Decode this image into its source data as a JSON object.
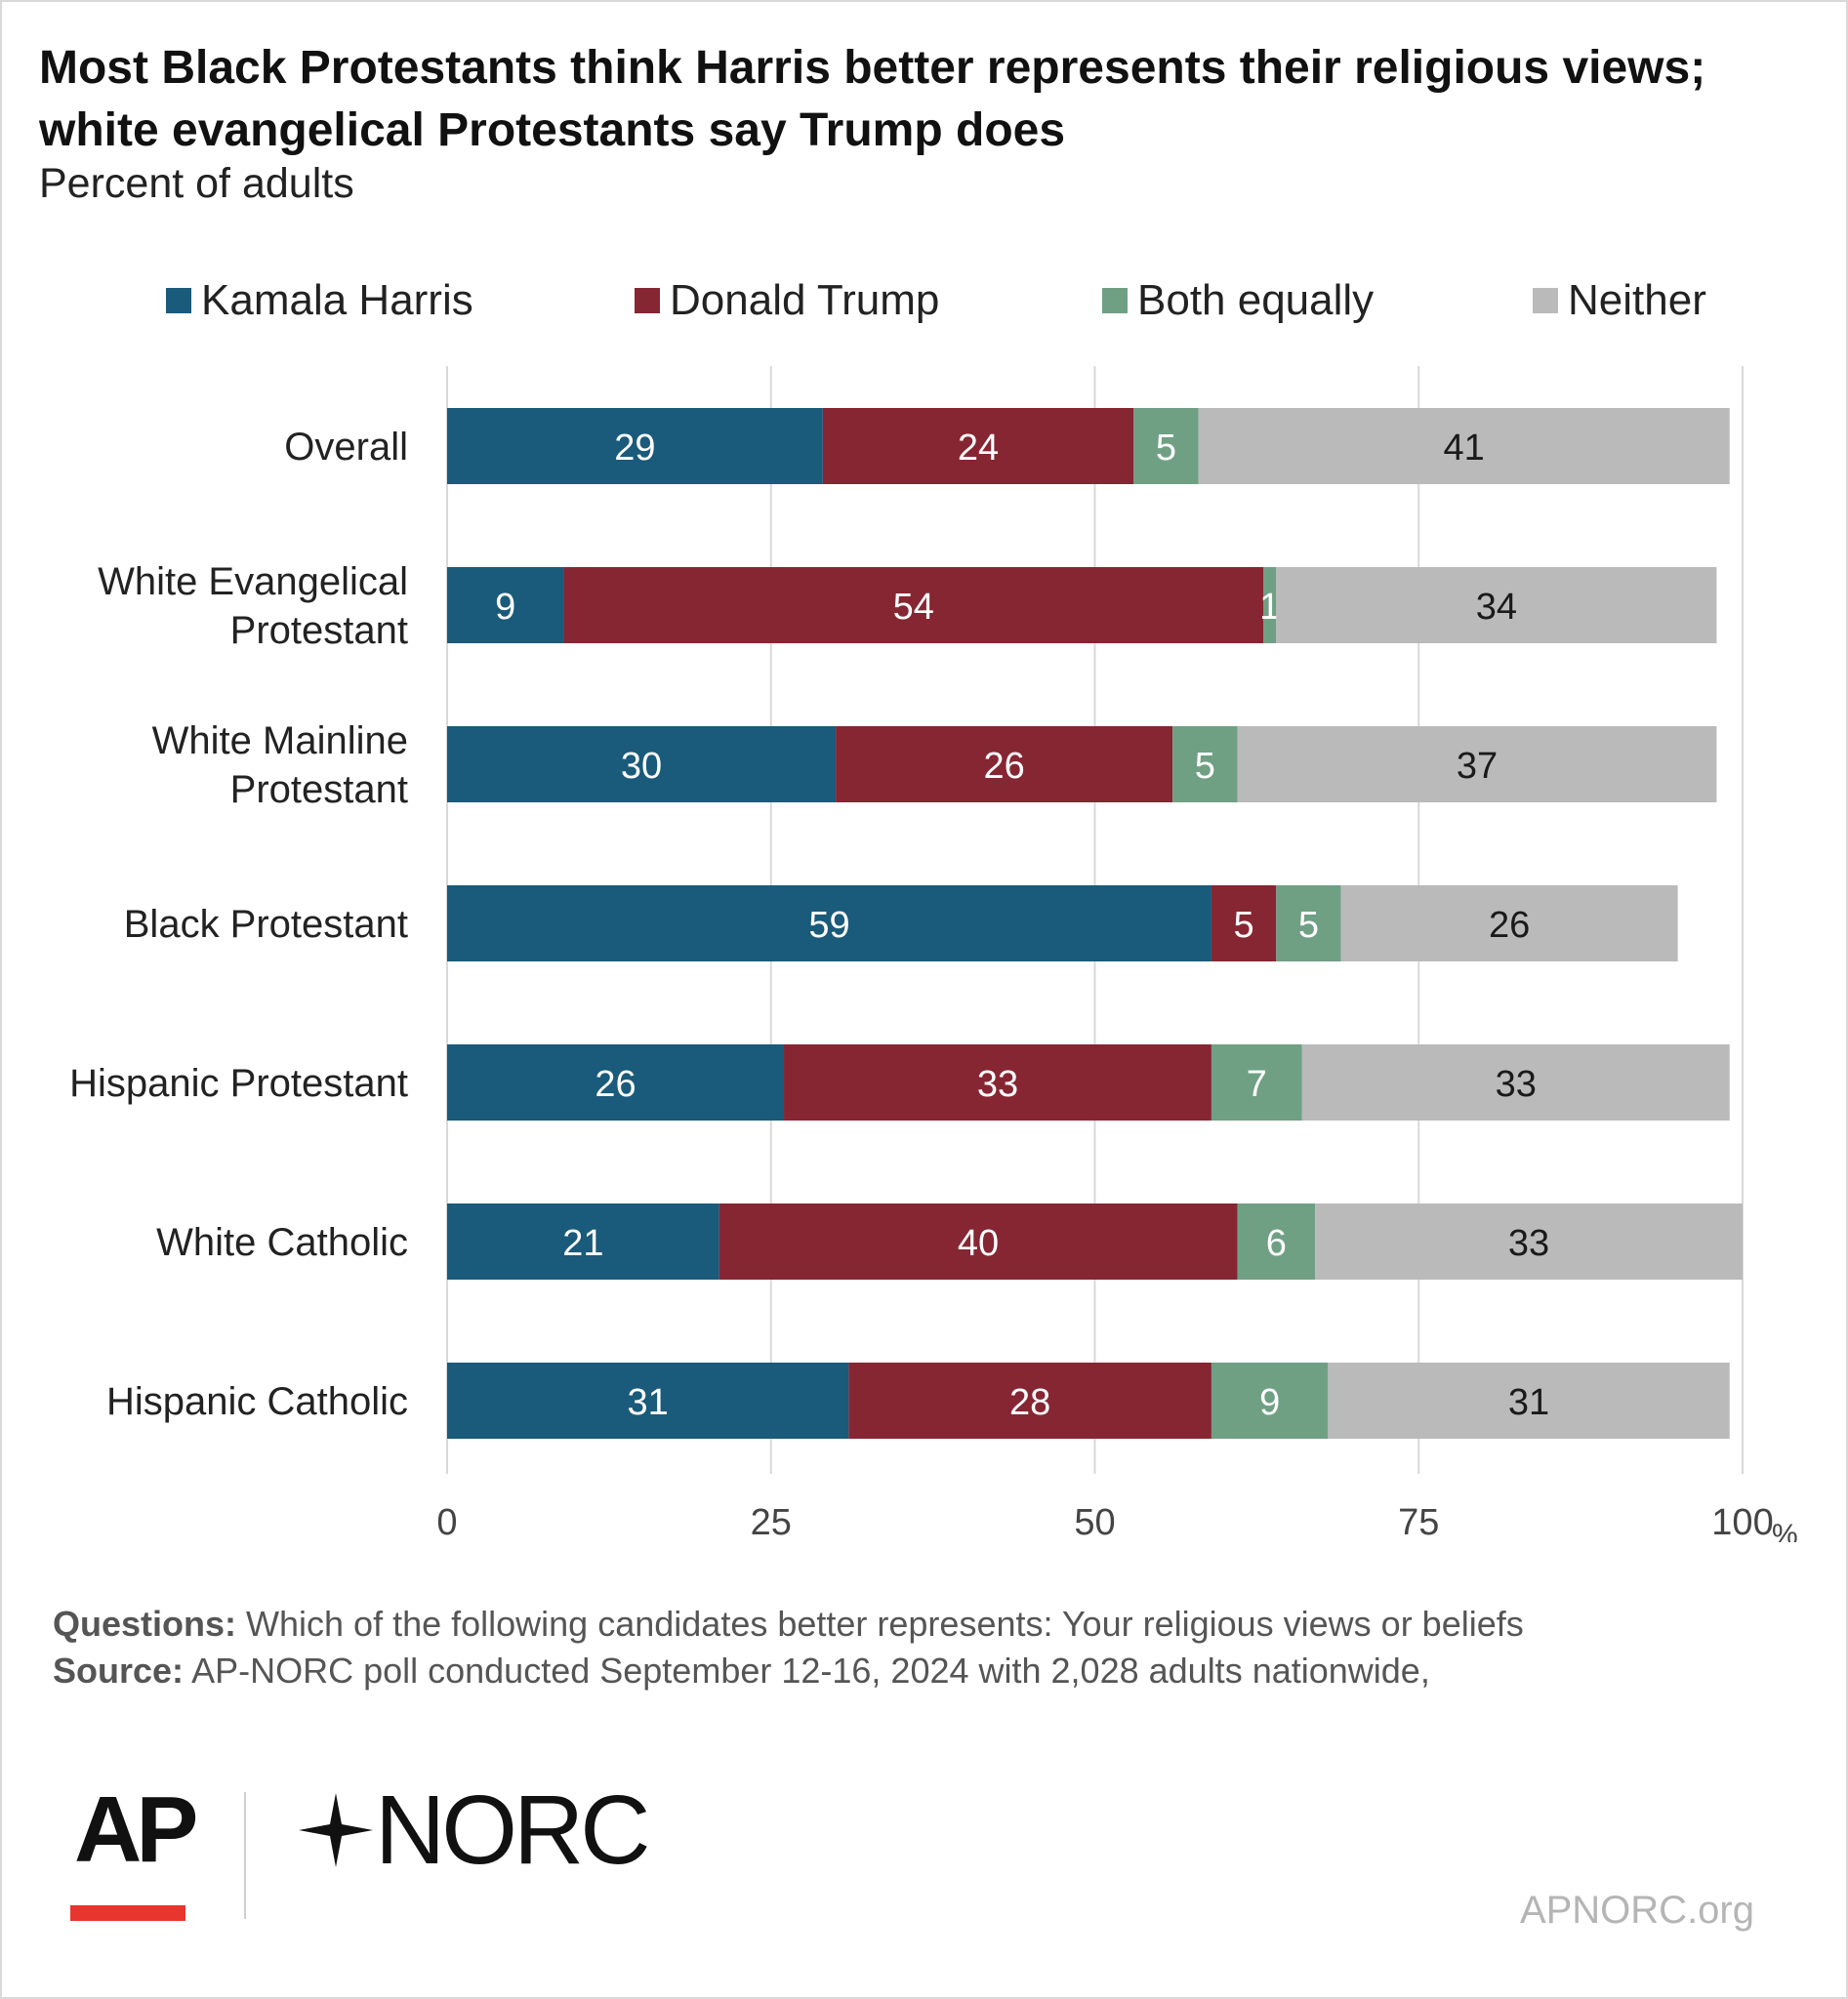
{
  "title": "Most Black Protestants think Harris better represents their religious views; white evangelical Protestants say Trump does",
  "subtitle": "Percent of adults",
  "legend": [
    {
      "label": "Kamala Harris",
      "color": "#1a5a7a"
    },
    {
      "label": "Donald Trump",
      "color": "#862633"
    },
    {
      "label": "Both equally",
      "color": "#6fa084"
    },
    {
      "label": "Neither",
      "color": "#bababa"
    }
  ],
  "chart_data": {
    "type": "bar",
    "orientation": "horizontal",
    "stacked": true,
    "categories": [
      [
        "Overall"
      ],
      [
        "White Evangelical",
        "Protestant"
      ],
      [
        "White Mainline",
        "Protestant"
      ],
      [
        "Black Protestant"
      ],
      [
        "Hispanic Protestant"
      ],
      [
        "White Catholic"
      ],
      [
        "Hispanic Catholic"
      ]
    ],
    "series": [
      {
        "name": "Kamala Harris",
        "color": "#1a5a7a",
        "label_color": "#ffffff",
        "values": [
          29,
          9,
          30,
          59,
          26,
          21,
          31
        ]
      },
      {
        "name": "Donald Trump",
        "color": "#862633",
        "label_color": "#ffffff",
        "values": [
          24,
          54,
          26,
          5,
          33,
          40,
          28
        ]
      },
      {
        "name": "Both equally",
        "color": "#6fa084",
        "label_color": "#ffffff",
        "values": [
          5,
          1,
          5,
          5,
          7,
          6,
          9
        ]
      },
      {
        "name": "Neither",
        "color": "#bababa",
        "label_color": "#1a1a1a",
        "values": [
          41,
          34,
          37,
          26,
          33,
          33,
          31
        ]
      }
    ],
    "xlim": [
      0,
      100
    ],
    "xticks": [
      "0",
      "25",
      "50",
      "75",
      "100"
    ],
    "xunit": "%",
    "grid": true,
    "legend_position": "top"
  },
  "notes": {
    "questions_label": "Questions:",
    "questions_text": "Which of the following candidates better represents: Your religious views or beliefs",
    "source_label": "Source:",
    "source_text": "AP-NORC poll conducted September 12-16, 2024 with 2,028 adults nationwide,"
  },
  "logos": {
    "ap": "AP",
    "norc": "NORC",
    "ap_bar_color": "#e8352e"
  },
  "site": "APNORC.org"
}
